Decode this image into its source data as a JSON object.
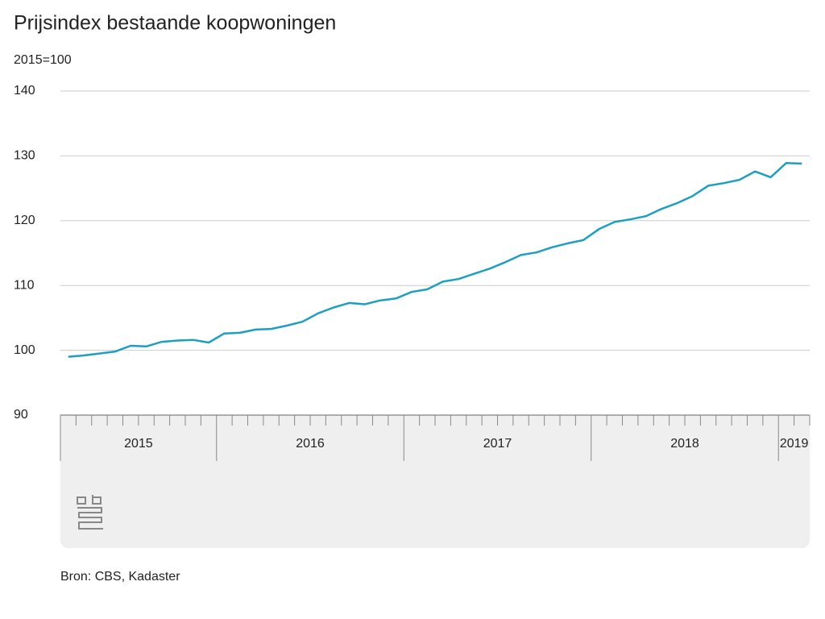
{
  "chart_data": {
    "type": "line",
    "title": "Prijsindex bestaande koopwoningen",
    "subtitle": "2015=100",
    "source": "Bron: CBS, Kadaster",
    "categories": [
      "2015",
      null,
      null,
      null,
      null,
      null,
      null,
      null,
      null,
      null,
      "2016",
      null,
      null,
      null,
      null,
      null,
      null,
      null,
      null,
      null,
      null,
      null,
      "2017",
      null,
      null,
      null,
      null,
      null,
      null,
      null,
      null,
      null,
      null,
      null,
      "2018",
      null,
      null,
      null,
      null,
      null,
      null,
      null,
      null,
      null,
      null,
      null,
      "2019",
      null
    ],
    "values": [
      99.0,
      99.2,
      99.5,
      99.8,
      100.7,
      100.6,
      101.3,
      101.5,
      101.6,
      101.2,
      102.6,
      102.7,
      103.2,
      103.3,
      103.8,
      104.4,
      105.7,
      106.6,
      107.3,
      107.1,
      107.7,
      108.0,
      109.0,
      109.4,
      110.6,
      111.0,
      111.8,
      112.6,
      113.6,
      114.7,
      115.1,
      115.9,
      116.5,
      117.0,
      118.7,
      119.8,
      120.2,
      120.7,
      121.8,
      122.7,
      123.8,
      125.4,
      125.8,
      126.3,
      127.6,
      126.7,
      128.9,
      128.8
    ],
    "color": "#1f9fc0",
    "ylim": [
      90,
      140
    ],
    "yticks": [
      90,
      100,
      110,
      120,
      130,
      140
    ],
    "grid": true
  }
}
